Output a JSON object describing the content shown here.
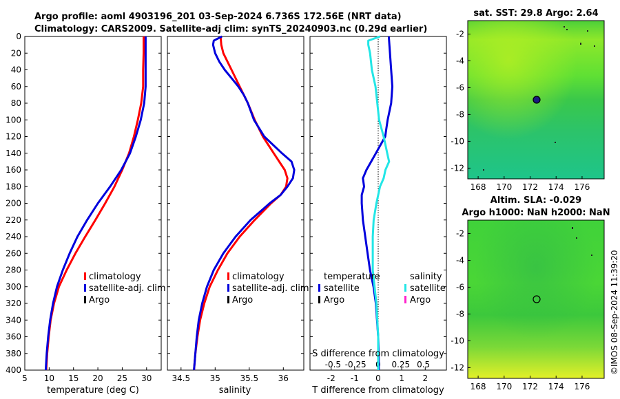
{
  "header": {
    "title_line1": "Argo profile: aoml 4903196_201 03-Sep-2024 6.736S 172.56E (NRT data)",
    "title_line2": "Climatology: CARS2009. Satellite-adj clim: synTS_20240903.nc (0.29d earlier)"
  },
  "footer": {
    "credit": "©IMOS 08-Sep-2024 11:39:20"
  },
  "colors": {
    "climatology": "#ff0000",
    "satellite": "#0000dd",
    "salinity_satellite": "#22e6e6",
    "argo": "#000000",
    "salinity_argo": "#ff22cc"
  },
  "chart_data": [
    {
      "type": "line",
      "name": "temperature-profile",
      "xlabel": "temperature (deg C)",
      "ylabel": "depth",
      "xlim": [
        5,
        33
      ],
      "ylim": [
        400,
        0
      ],
      "xticks": [
        5,
        10,
        15,
        20,
        25,
        30
      ],
      "yticks": [
        0,
        20,
        40,
        60,
        80,
        100,
        120,
        140,
        160,
        180,
        200,
        220,
        240,
        260,
        280,
        300,
        320,
        340,
        360,
        380,
        400
      ],
      "legend": [
        "climatology",
        "satellite-adj. clim",
        "Argo"
      ],
      "series": [
        {
          "name": "climatology",
          "color": "#ff0000",
          "depth": [
            0,
            20,
            40,
            60,
            80,
            100,
            120,
            140,
            160,
            180,
            200,
            220,
            240,
            260,
            280,
            300,
            320,
            340,
            360,
            380,
            400
          ],
          "values": [
            29.4,
            29.4,
            29.3,
            29.3,
            28.9,
            28.2,
            27.4,
            26.4,
            25.0,
            23.4,
            21.5,
            19.5,
            17.4,
            15.4,
            13.6,
            12.0,
            11.0,
            10.3,
            9.9,
            9.6,
            9.4
          ]
        },
        {
          "name": "satellite-adj. clim",
          "color": "#0000dd",
          "depth": [
            0,
            20,
            40,
            60,
            80,
            100,
            120,
            140,
            160,
            180,
            200,
            220,
            240,
            260,
            280,
            300,
            320,
            340,
            360,
            380,
            400
          ],
          "values": [
            29.8,
            29.8,
            29.8,
            29.8,
            29.5,
            28.8,
            27.8,
            26.6,
            24.8,
            22.5,
            20.0,
            17.8,
            15.8,
            14.2,
            12.8,
            11.6,
            10.8,
            10.2,
            9.8,
            9.5,
            9.3
          ]
        }
      ]
    },
    {
      "type": "line",
      "name": "salinity-profile",
      "xlabel": "salinity",
      "ylabel": "depth",
      "xlim": [
        34.3,
        36.3
      ],
      "ylim": [
        400,
        0
      ],
      "xticks": [
        34.5,
        35,
        35.5,
        36
      ],
      "legend": [
        "climatology",
        "satellite-adj. clim",
        "Argo"
      ],
      "series": [
        {
          "name": "climatology",
          "color": "#ff0000",
          "depth": [
            0,
            10,
            20,
            30,
            40,
            50,
            60,
            70,
            80,
            100,
            120,
            140,
            160,
            170,
            180,
            190,
            200,
            220,
            240,
            260,
            280,
            300,
            320,
            340,
            360,
            380,
            400
          ],
          "values": [
            35.08,
            35.09,
            35.12,
            35.18,
            35.24,
            35.3,
            35.36,
            35.42,
            35.48,
            35.58,
            35.7,
            35.86,
            36.02,
            36.06,
            36.04,
            35.96,
            35.82,
            35.58,
            35.36,
            35.18,
            35.04,
            34.92,
            34.84,
            34.78,
            34.74,
            34.71,
            34.69
          ]
        },
        {
          "name": "satellite-adj. clim",
          "color": "#0000dd",
          "depth": [
            0,
            5,
            10,
            20,
            30,
            40,
            50,
            60,
            70,
            80,
            100,
            120,
            140,
            150,
            160,
            170,
            180,
            190,
            200,
            220,
            240,
            260,
            280,
            300,
            320,
            340,
            360,
            380,
            400
          ],
          "values": [
            35.1,
            34.98,
            34.97,
            35.0,
            35.06,
            35.14,
            35.24,
            35.34,
            35.42,
            35.48,
            35.57,
            35.72,
            35.98,
            36.12,
            36.16,
            36.14,
            36.06,
            35.96,
            35.8,
            35.52,
            35.3,
            35.12,
            34.98,
            34.88,
            34.81,
            34.76,
            34.73,
            34.71,
            34.69
          ]
        }
      ]
    },
    {
      "type": "line",
      "name": "difference-profile",
      "xlabel": "T difference from climatology",
      "xlabel_top": "S difference from climatology",
      "xlim": [
        -2.9,
        2.9
      ],
      "xticks": [
        -2,
        -1,
        0,
        1,
        2
      ],
      "xticks_top": [
        "-0.5",
        "-0.25",
        "0",
        "0.25",
        "0.5"
      ],
      "legend_titles": [
        "temperature",
        "salinity"
      ],
      "legend_left": [
        "satellite",
        "Argo"
      ],
      "legend_right": [
        "satellite",
        "Argo"
      ],
      "series": [
        {
          "name": "temperature satellite",
          "color": "#0000dd",
          "depth": [
            0,
            20,
            40,
            60,
            80,
            100,
            110,
            120,
            130,
            140,
            150,
            160,
            170,
            180,
            190,
            200,
            220,
            240,
            260,
            280,
            300,
            320,
            340,
            360,
            380,
            400
          ],
          "values": [
            0.45,
            0.5,
            0.55,
            0.6,
            0.55,
            0.4,
            0.35,
            0.3,
            0.1,
            -0.1,
            -0.3,
            -0.5,
            -0.65,
            -0.6,
            -0.7,
            -0.7,
            -0.65,
            -0.55,
            -0.45,
            -0.35,
            -0.2,
            -0.1,
            -0.05,
            0.0,
            0.02,
            0.03
          ]
        },
        {
          "name": "salinity satellite",
          "color": "#22e6e6",
          "depth": [
            0,
            5,
            10,
            20,
            40,
            60,
            80,
            100,
            120,
            130,
            140,
            150,
            160,
            170,
            180,
            190,
            200,
            220,
            240,
            260,
            280,
            300,
            320,
            340,
            360,
            380,
            400
          ],
          "values": [
            0.02,
            -0.11,
            -0.11,
            -0.09,
            -0.07,
            -0.03,
            -0.01,
            0.01,
            0.06,
            0.08,
            0.1,
            0.12,
            0.08,
            0.06,
            0.02,
            0.0,
            -0.02,
            -0.05,
            -0.06,
            -0.06,
            -0.06,
            -0.04,
            -0.02,
            -0.01,
            0.0,
            0.0,
            0.0
          ]
        }
      ]
    },
    {
      "type": "heatmap",
      "name": "sst-map",
      "title": "sat. SST: 29.8 Argo: 2.64",
      "xticks": [
        168,
        170,
        172,
        174,
        176
      ],
      "yticks": [
        -2,
        -4,
        -6,
        -8,
        -10,
        -12
      ],
      "xlim": [
        167.2,
        177.7
      ],
      "ylim": [
        -12.8,
        -1.0
      ],
      "marker": {
        "lon": 172.56,
        "lat": -6.736
      }
    },
    {
      "type": "heatmap",
      "name": "sla-map",
      "title_line1": "Altim. SLA: -0.029",
      "title_line2": "Argo h1000: NaN h2000: NaN",
      "xticks": [
        168,
        170,
        172,
        174,
        176
      ],
      "yticks": [
        -2,
        -4,
        -6,
        -8,
        -10,
        -12
      ],
      "xlim": [
        167.2,
        177.7
      ],
      "ylim": [
        -12.8,
        -1.0
      ],
      "marker": {
        "lon": 172.56,
        "lat": -6.736
      }
    }
  ]
}
